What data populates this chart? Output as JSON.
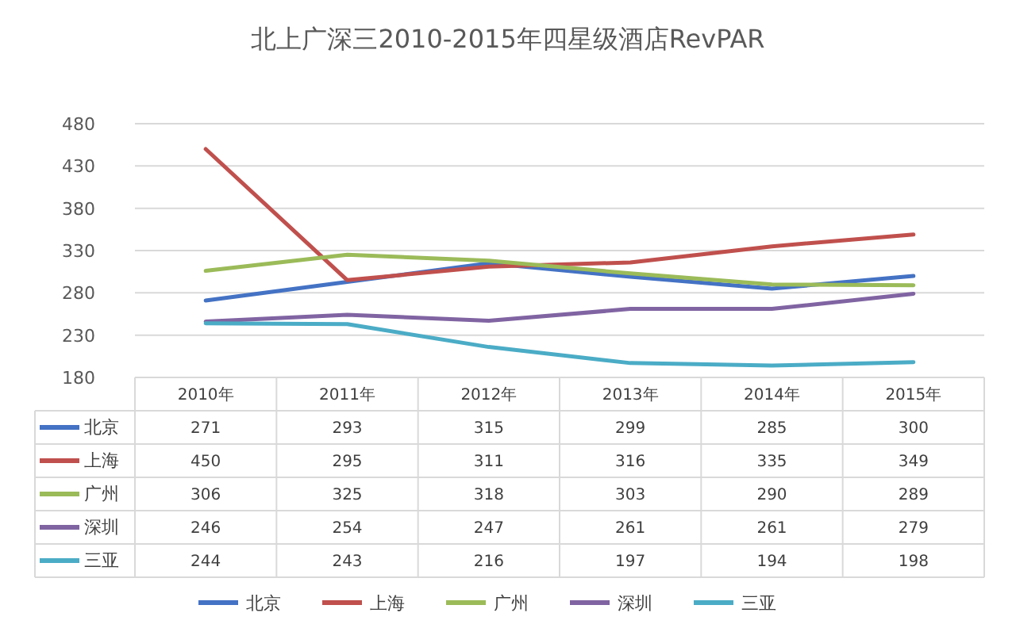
{
  "chart_data": {
    "type": "line",
    "title": "北上广深三2010-2015年四星级酒店RevPAR",
    "categories": [
      "2010年",
      "2011年",
      "2012年",
      "2013年",
      "2014年",
      "2015年"
    ],
    "series": [
      {
        "name": "北京",
        "color": "#4472c4",
        "values": [
          271,
          293,
          315,
          299,
          285,
          300
        ]
      },
      {
        "name": "上海",
        "color": "#c0504d",
        "values": [
          450,
          295,
          311,
          316,
          335,
          349
        ]
      },
      {
        "name": "广州",
        "color": "#9bbb59",
        "values": [
          306,
          325,
          318,
          303,
          290,
          289
        ]
      },
      {
        "name": "深圳",
        "color": "#8064a2",
        "values": [
          246,
          254,
          247,
          261,
          261,
          279
        ]
      },
      {
        "name": "三亚",
        "color": "#4bacc6",
        "values": [
          244,
          243,
          216,
          197,
          194,
          198
        ]
      }
    ],
    "ylim": [
      180,
      480
    ],
    "yticks": [
      180,
      230,
      280,
      330,
      380,
      430,
      480
    ],
    "grid": "y",
    "legend": "bottom",
    "data_labels": true
  }
}
